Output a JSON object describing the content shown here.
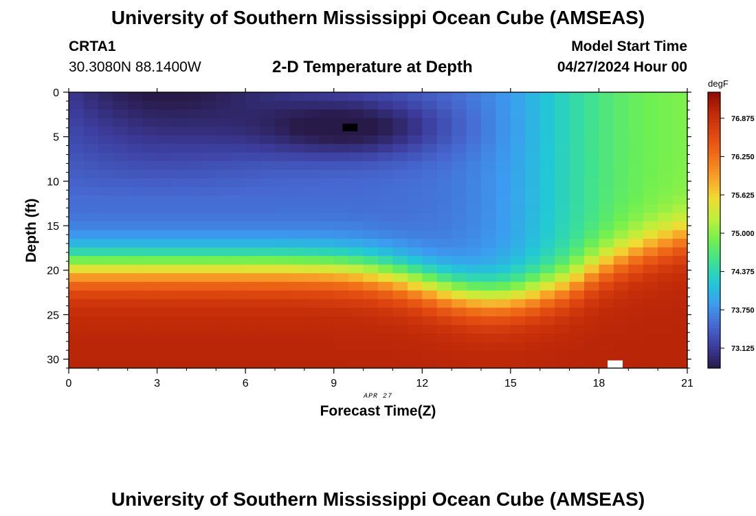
{
  "header": {
    "title": "University of Southern Mississippi Ocean Cube (AMSEAS)",
    "station": "CRTA1",
    "coords": "30.3080N  88.1400W",
    "plot_title": "2-D Temperature at Depth",
    "model_start_label": "Model Start Time",
    "model_start_value": "04/27/2024 Hour 00"
  },
  "footer": {
    "title": "University of Southern Mississippi Ocean Cube (AMSEAS)"
  },
  "chart_data": {
    "type": "heatmap",
    "title": "2-D Temperature at Depth",
    "xlabel": "Forecast Time(Z)",
    "ylabel": "Depth (ft)",
    "date_label": "APR 27",
    "xlim": [
      0,
      21
    ],
    "ylim": [
      31,
      0
    ],
    "x_ticks": [
      0,
      3,
      6,
      9,
      12,
      15,
      18,
      21
    ],
    "y_ticks": [
      0,
      5,
      10,
      15,
      20,
      25,
      30
    ],
    "colorbar": {
      "unit": "degF",
      "range": [
        72.8,
        77.3
      ],
      "tick_values": [
        76.875,
        76.25,
        75.625,
        75.0,
        74.375,
        73.75,
        73.125
      ],
      "tick_labels": [
        "76.875",
        "76.250",
        "75.625",
        "75.000",
        "74.375",
        "73.750",
        "73.125"
      ],
      "colors": [
        "#281a48",
        "#3c3c9c",
        "#4668d0",
        "#3c9cf0",
        "#22c8d6",
        "#3ce096",
        "#70f050",
        "#bcf03c",
        "#f0dc32",
        "#f8a028",
        "#f06e18",
        "#e04810",
        "#c02a08",
        "#8c0c04"
      ]
    },
    "markers": [
      {
        "name": "min-marker",
        "x": 9.55,
        "y": 4.0,
        "color": "#000000"
      },
      {
        "name": "max-marker",
        "x": 18.55,
        "y": 30.6,
        "color": "#ffffff"
      }
    ]
  }
}
